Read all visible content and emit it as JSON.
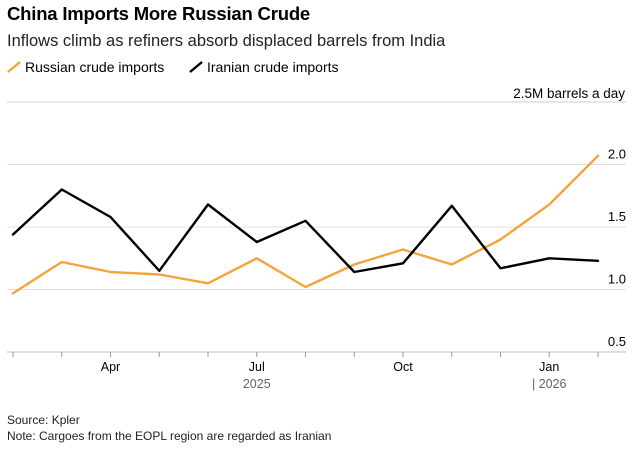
{
  "header": {
    "title": "China Imports More Russian Crude",
    "subtitle": "Inflows climb as refiners absorb displaced barrels from India"
  },
  "legend": {
    "items": [
      {
        "label": "Russian crude imports",
        "color": "#f5a33a"
      },
      {
        "label": "Iranian crude imports",
        "color": "#000000"
      }
    ]
  },
  "footer": {
    "source": "Source: Kpler",
    "note": "Note: Cargoes from the EOPL region are regarded as Iranian"
  },
  "chart_data": {
    "type": "line",
    "unit_label": "2.5M barrels a day",
    "ylim": [
      0.5,
      2.5
    ],
    "yticks": [
      0.5,
      1.0,
      1.5,
      2.0
    ],
    "ytick_labels": [
      "0.5",
      "1.0",
      "1.5",
      "2.0"
    ],
    "grid": true,
    "legend_position": "top-left",
    "x": [
      "2025-02",
      "2025-03",
      "2025-04",
      "2025-05",
      "2025-06",
      "2025-07",
      "2025-08",
      "2025-09",
      "2025-10",
      "2025-11",
      "2025-12",
      "2026-01",
      "2026-02"
    ],
    "xticks": [
      {
        "x": "2025-04",
        "label": "Apr"
      },
      {
        "x": "2025-07",
        "label": "Jul"
      },
      {
        "x": "2025-10",
        "label": "Oct"
      },
      {
        "x": "2026-01",
        "label": "Jan"
      }
    ],
    "year_labels": [
      {
        "x": "2025-07",
        "label": "2025"
      },
      {
        "x": "2026-01",
        "label": "| 2026"
      }
    ],
    "series": [
      {
        "name": "Russian crude imports",
        "color": "#f5a33a",
        "values": [
          0.97,
          1.22,
          1.14,
          1.12,
          1.05,
          1.25,
          1.02,
          1.2,
          1.32,
          1.2,
          1.4,
          1.68,
          2.07
        ]
      },
      {
        "name": "Iranian crude imports",
        "color": "#000000",
        "values": [
          1.44,
          1.8,
          1.58,
          1.15,
          1.68,
          1.38,
          1.55,
          1.14,
          1.21,
          1.67,
          1.17,
          1.25,
          1.23
        ]
      }
    ]
  }
}
